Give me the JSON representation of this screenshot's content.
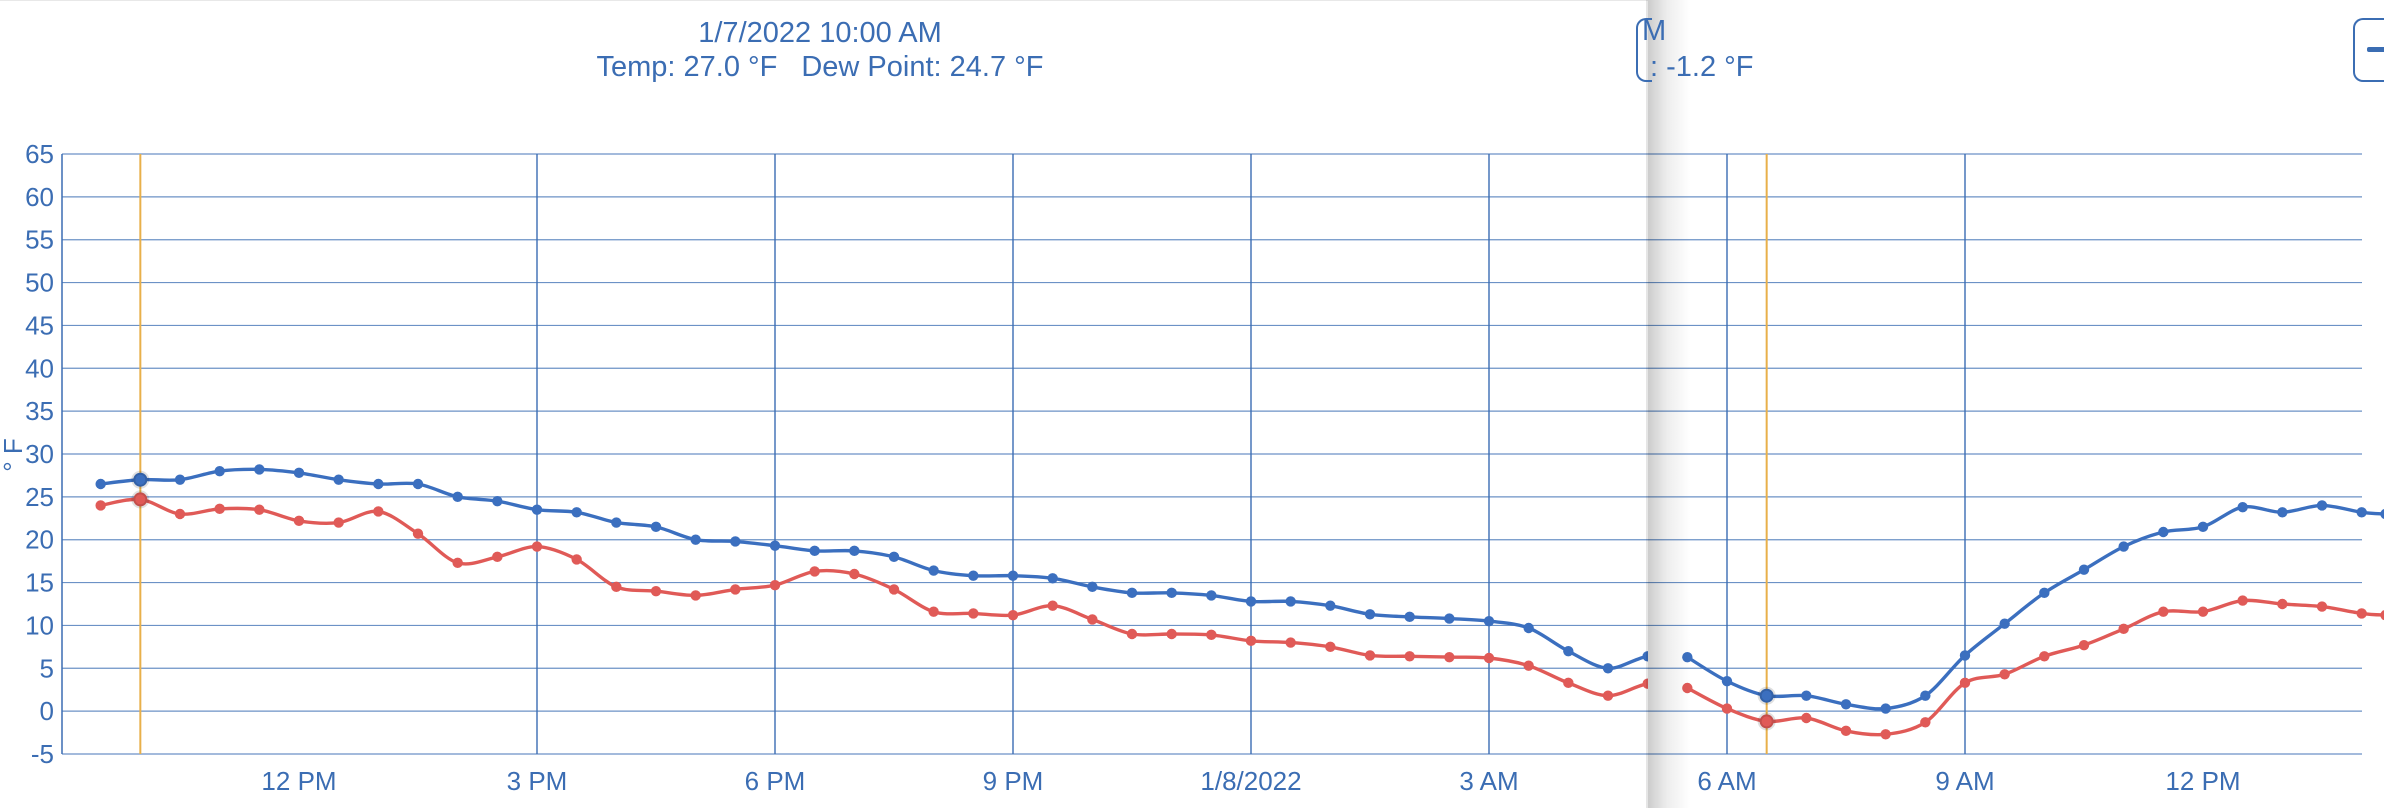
{
  "tooltip_left": {
    "datetime": "1/7/2022 10:00 AM",
    "temp_text": "Temp: 27.0 °F",
    "dew_text": "Dew Point: 24.7 °F"
  },
  "tooltip_right": {
    "cut_char": "M",
    "value_text": ": -1.2 °F"
  },
  "colors": {
    "temperature": "#3b6fbf",
    "dew_point": "#e05a57",
    "grid": "#3b6db3",
    "crosshair": "#e8b04a",
    "text": "#3b6db3"
  },
  "chart_data": {
    "type": "line",
    "ylabel": "° F",
    "xlabel": "",
    "ylim": [
      -5,
      65
    ],
    "y_ticks": [
      -5,
      0,
      5,
      10,
      15,
      20,
      25,
      30,
      35,
      40,
      45,
      50,
      55,
      60,
      65
    ],
    "x_tick_labels": [
      "12 PM",
      "3 PM",
      "6 PM",
      "9 PM",
      "1/8/2022",
      "3 AM",
      "6 AM",
      "9 AM",
      "12 PM"
    ],
    "x_tick_hours": [
      2,
      5,
      8,
      11,
      14,
      17,
      20,
      23,
      26
    ],
    "x_range_hours": [
      -0.5,
      28.3
    ],
    "x_origin": "1/7/2022 10:00 AM",
    "grid": true,
    "segments": [
      {
        "name": "left",
        "crosshair_hour": 0,
        "series": [
          {
            "name": "Temp",
            "x": [
              -0.5,
              0,
              0.5,
              1,
              1.5,
              2,
              2.5,
              3,
              3.5,
              4,
              4.5,
              5,
              5.5,
              6,
              6.5,
              7,
              7.5,
              8,
              8.5,
              9,
              9.5,
              10,
              10.5,
              11,
              11.5,
              12,
              12.5,
              13,
              13.5,
              14,
              14.5,
              15,
              15.5,
              16,
              16.5,
              17,
              17.5,
              18,
              18.5,
              19,
              19.5
            ],
            "values": [
              26.5,
              27.0,
              27.0,
              28.0,
              28.2,
              27.8,
              27.0,
              26.5,
              26.5,
              25.0,
              24.5,
              23.5,
              23.2,
              22.0,
              21.5,
              20.0,
              19.8,
              19.3,
              18.7,
              18.7,
              18.0,
              16.4,
              15.8,
              15.8,
              15.5,
              14.5,
              13.8,
              13.8,
              13.5,
              12.8,
              12.8,
              12.3,
              11.3,
              11.0,
              10.8,
              10.5,
              9.7,
              7.0,
              5.0,
              6.4,
              6.3
            ]
          },
          {
            "name": "Dew Point",
            "x": [
              -0.5,
              0,
              0.5,
              1,
              1.5,
              2,
              2.5,
              3,
              3.5,
              4,
              4.5,
              5,
              5.5,
              6,
              6.5,
              7,
              7.5,
              8,
              8.5,
              9,
              9.5,
              10,
              10.5,
              11,
              11.5,
              12,
              12.5,
              13,
              13.5,
              14,
              14.5,
              15,
              15.5,
              16,
              16.5,
              17,
              17.5,
              18,
              18.5,
              19,
              19.5
            ],
            "values": [
              24.0,
              24.7,
              23.0,
              23.6,
              23.5,
              22.2,
              22.0,
              23.3,
              20.7,
              17.3,
              18.0,
              19.2,
              17.7,
              14.5,
              14.0,
              13.5,
              14.2,
              14.7,
              16.3,
              16.0,
              14.2,
              11.6,
              11.4,
              11.2,
              12.3,
              10.7,
              9.0,
              9.0,
              8.9,
              8.2,
              8.0,
              7.5,
              6.5,
              6.4,
              6.3,
              6.2,
              5.3,
              3.3,
              1.8,
              3.2,
              3.3
            ]
          }
        ]
      },
      {
        "name": "right",
        "crosshair_hour": 20.5,
        "series": [
          {
            "name": "Temp",
            "x": [
              19.5,
              20,
              20.5,
              21,
              21.5,
              22,
              22.5,
              23,
              23.5,
              24,
              24.5,
              25,
              25.5,
              26,
              26.5,
              27,
              27.5,
              28,
              28.3
            ],
            "values": [
              6.3,
              3.5,
              1.8,
              1.8,
              0.8,
              0.3,
              1.8,
              6.5,
              10.2,
              13.8,
              16.5,
              19.2,
              20.9,
              21.5,
              23.8,
              23.2,
              24.0,
              23.2,
              23.0
            ]
          },
          {
            "name": "Dew Point",
            "x": [
              19.5,
              20,
              20.5,
              21,
              21.5,
              22,
              22.5,
              23,
              23.5,
              24,
              24.5,
              25,
              25.5,
              26,
              26.5,
              27,
              27.5,
              28,
              28.3
            ],
            "values": [
              2.7,
              0.3,
              -1.2,
              -0.8,
              -2.3,
              -2.7,
              -1.3,
              3.3,
              4.3,
              6.4,
              7.7,
              9.6,
              11.6,
              11.6,
              12.9,
              12.5,
              12.2,
              11.4,
              11.2
            ]
          }
        ]
      }
    ]
  }
}
